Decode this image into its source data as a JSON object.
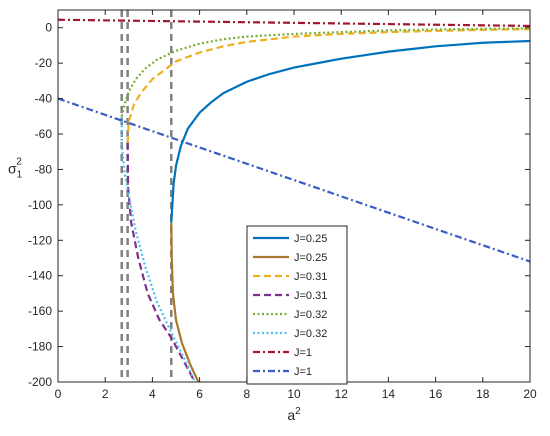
{
  "chart_data": {
    "type": "line",
    "xlabel": "a",
    "xlabel_sup": "2",
    "ylabel": "σ",
    "ylabel_sub": "1",
    "ylabel_sup": "2",
    "xlim": [
      0,
      20
    ],
    "ylim": [
      -200,
      10
    ],
    "xticks": [
      0,
      2,
      4,
      6,
      8,
      10,
      12,
      14,
      16,
      18,
      20
    ],
    "yticks": [
      0,
      -20,
      -40,
      -60,
      -80,
      -100,
      -120,
      -140,
      -160,
      -180,
      -200
    ],
    "grid": false,
    "legend_position": "bottom-center",
    "vlines": [
      2.7,
      2.95,
      4.8
    ],
    "series": [
      {
        "name": "J=0.25",
        "color": "#0072bd",
        "dash": "solid",
        "points": [
          [
            4.8,
            -110
          ],
          [
            4.9,
            -88
          ],
          [
            5.0,
            -78
          ],
          [
            5.2,
            -67
          ],
          [
            5.5,
            -57
          ],
          [
            6,
            -48
          ],
          [
            6.5,
            -42
          ],
          [
            7,
            -37
          ],
          [
            8,
            -30.5
          ],
          [
            9,
            -26
          ],
          [
            10,
            -22.5
          ],
          [
            11,
            -20
          ],
          [
            12,
            -17.5
          ],
          [
            13,
            -15.5
          ],
          [
            14,
            -13.5
          ],
          [
            15,
            -12
          ],
          [
            16,
            -10.5
          ],
          [
            17,
            -9.5
          ],
          [
            18,
            -8.5
          ],
          [
            19,
            -8
          ],
          [
            20,
            -7.5
          ]
        ]
      },
      {
        "name": "J=0.25",
        "color": "#a9762c",
        "dash": "solid",
        "points": [
          [
            4.8,
            -110
          ],
          [
            4.82,
            -130
          ],
          [
            4.87,
            -150
          ],
          [
            5.0,
            -165
          ],
          [
            5.25,
            -178
          ],
          [
            5.6,
            -190
          ],
          [
            5.95,
            -200
          ]
        ]
      },
      {
        "name": "J=0.31",
        "color": "#edb120",
        "dash": "dashed",
        "points": [
          [
            2.95,
            -65
          ],
          [
            3.0,
            -53
          ],
          [
            3.2,
            -44
          ],
          [
            3.5,
            -37
          ],
          [
            4,
            -29
          ],
          [
            4.5,
            -24
          ],
          [
            5,
            -19
          ],
          [
            6,
            -14
          ],
          [
            7,
            -10.5
          ],
          [
            8,
            -8
          ],
          [
            10,
            -5
          ],
          [
            12,
            -3.5
          ],
          [
            14,
            -2.5
          ],
          [
            16,
            -1.8
          ],
          [
            18,
            -1.2
          ],
          [
            20,
            -0.8
          ]
        ]
      },
      {
        "name": "J=0.31",
        "color": "#7e2f8e",
        "dash": "dashed",
        "points": [
          [
            2.95,
            -65
          ],
          [
            2.97,
            -90
          ],
          [
            3.1,
            -110
          ],
          [
            3.4,
            -130
          ],
          [
            3.8,
            -150
          ],
          [
            4.3,
            -165
          ],
          [
            4.8,
            -175
          ],
          [
            5.4,
            -190
          ],
          [
            5.8,
            -200
          ]
        ]
      },
      {
        "name": "J=0.32",
        "color": "#77ac30",
        "dash": "dotted",
        "points": [
          [
            2.7,
            -50
          ],
          [
            2.85,
            -42
          ],
          [
            3.0,
            -36
          ],
          [
            3.3,
            -29
          ],
          [
            3.7,
            -23
          ],
          [
            4.2,
            -18
          ],
          [
            5,
            -13
          ],
          [
            6,
            -9
          ],
          [
            7,
            -6.5
          ],
          [
            8,
            -5
          ],
          [
            10,
            -3.5
          ],
          [
            12,
            -2.5
          ],
          [
            14,
            -1.5
          ],
          [
            16,
            -1
          ],
          [
            18,
            -0.6
          ],
          [
            20,
            -0.4
          ]
        ]
      },
      {
        "name": "J=0.32",
        "color": "#4dbeee",
        "dash": "dotted",
        "points": [
          [
            2.7,
            -50
          ],
          [
            2.7,
            -65
          ],
          [
            2.8,
            -80
          ],
          [
            3.0,
            -95
          ],
          [
            3.3,
            -115
          ],
          [
            3.7,
            -135
          ],
          [
            4.2,
            -155
          ],
          [
            4.8,
            -172
          ],
          [
            5.4,
            -188
          ],
          [
            5.8,
            -200
          ]
        ]
      },
      {
        "name": "J=1",
        "color": "#a2142f",
        "dash": "dashdot",
        "points": [
          [
            0,
            4.5
          ],
          [
            20,
            1
          ]
        ]
      },
      {
        "name": "J=1",
        "color": "#3b5cc4",
        "dash": "dashdot",
        "points": [
          [
            0,
            -40
          ],
          [
            20,
            -132
          ]
        ]
      }
    ]
  }
}
